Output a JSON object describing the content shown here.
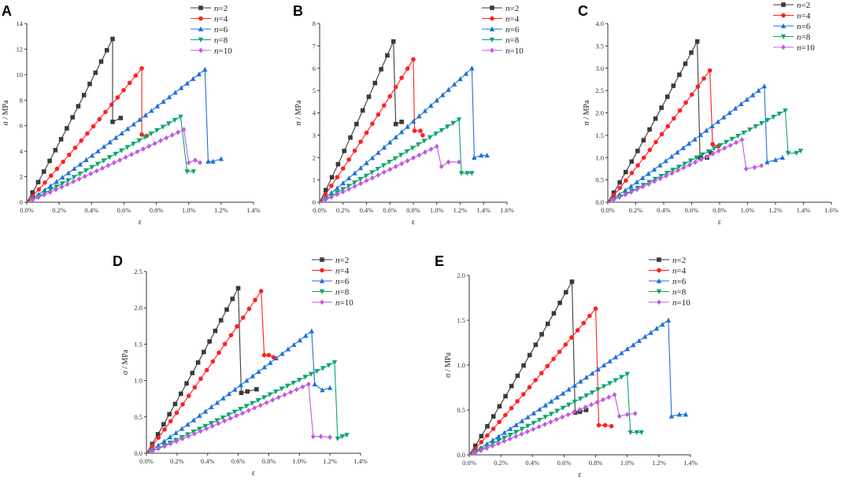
{
  "colors": {
    "n2": "#3a3a3a",
    "n4": "#ff2020",
    "n6": "#1f6fd8",
    "n8": "#0aa56a",
    "n10": "#c05ae0"
  },
  "legend_prefix": "n",
  "legend_suffixes": [
    "=2",
    "=4",
    "=6",
    "=8",
    "=10"
  ],
  "chart_data": [
    {
      "panel": "A",
      "type": "line",
      "xlabel": "ε",
      "ylabel": "σ / MPa",
      "xlim": [
        0,
        1.4
      ],
      "ylim": [
        0,
        14
      ],
      "xticks": [
        "0.0%",
        "0.2%",
        "0.4%",
        "0.6%",
        "0.8%",
        "1.0%",
        "1.2%",
        "1.4%"
      ],
      "yticks": [
        "0",
        "2",
        "4",
        "6",
        "8",
        "10",
        "12",
        "14"
      ],
      "series": [
        {
          "name": "n=2",
          "marker": "square",
          "peak": [
            0.53,
            12.8
          ],
          "post": [
            [
              0.53,
              6.3
            ],
            [
              0.58,
              6.6
            ]
          ]
        },
        {
          "name": "n=4",
          "marker": "circle",
          "peak": [
            0.71,
            10.5
          ],
          "post": [
            [
              0.71,
              5.3
            ],
            [
              0.74,
              5.2
            ]
          ]
        },
        {
          "name": "n=6",
          "marker": "triangle-up",
          "peak": [
            1.1,
            10.4
          ],
          "post": [
            [
              1.12,
              3.2
            ],
            [
              1.15,
              3.2
            ],
            [
              1.2,
              3.4
            ]
          ]
        },
        {
          "name": "n=8",
          "marker": "triangle-down",
          "peak": [
            0.95,
            6.7
          ],
          "post": [
            [
              0.99,
              2.4
            ],
            [
              1.03,
              2.4
            ]
          ]
        },
        {
          "name": "n=10",
          "marker": "diamond",
          "peak": [
            0.97,
            5.7
          ],
          "post": [
            [
              1.0,
              3.1
            ],
            [
              1.04,
              3.3
            ],
            [
              1.07,
              3.1
            ]
          ]
        }
      ]
    },
    {
      "panel": "B",
      "type": "line",
      "xlabel": "ε",
      "ylabel": "σ / MPa",
      "xlim": [
        0,
        1.6
      ],
      "ylim": [
        0,
        8
      ],
      "xticks": [
        "0.0%",
        "0.2%",
        "0.4%",
        "0.6%",
        "0.8%",
        "1.0%",
        "1.2%",
        "1.4%",
        "1.6%"
      ],
      "yticks": [
        "0",
        "1",
        "2",
        "3",
        "4",
        "5",
        "6",
        "7",
        "8"
      ],
      "series": [
        {
          "name": "n=2",
          "marker": "square",
          "peak": [
            0.63,
            7.2
          ],
          "post": [
            [
              0.65,
              3.5
            ],
            [
              0.7,
              3.6
            ]
          ]
        },
        {
          "name": "n=4",
          "marker": "circle",
          "peak": [
            0.8,
            6.4
          ],
          "post": [
            [
              0.81,
              3.2
            ],
            [
              0.86,
              3.2
            ],
            [
              0.88,
              3.0
            ]
          ]
        },
        {
          "name": "n=6",
          "marker": "triangle-up",
          "peak": [
            1.3,
            6.0
          ],
          "post": [
            [
              1.32,
              2.0
            ],
            [
              1.38,
              2.1
            ],
            [
              1.43,
              2.1
            ]
          ]
        },
        {
          "name": "n=8",
          "marker": "triangle-down",
          "peak": [
            1.19,
            3.7
          ],
          "post": [
            [
              1.21,
              1.3
            ],
            [
              1.26,
              1.3
            ],
            [
              1.3,
              1.3
            ]
          ]
        },
        {
          "name": "n=10",
          "marker": "diamond",
          "peak": [
            1.0,
            2.5
          ],
          "post": [
            [
              1.04,
              1.6
            ],
            [
              1.1,
              1.8
            ],
            [
              1.19,
              1.8
            ]
          ]
        }
      ]
    },
    {
      "panel": "C",
      "type": "line",
      "xlabel": "ε",
      "ylabel": "σ / MPa",
      "xlim": [
        0,
        1.6
      ],
      "ylim": [
        0,
        4.0
      ],
      "xticks": [
        "0.0%",
        "0.2%",
        "0.4%",
        "0.6%",
        "0.8%",
        "1.0%",
        "1.2%",
        "1.4%",
        "1.6%"
      ],
      "yticks": [
        "0.0",
        "0.5",
        "1.0",
        "1.5",
        "2.0",
        "2.5",
        "3.0",
        "3.5",
        "4.0"
      ],
      "series": [
        {
          "name": "n=2",
          "marker": "square",
          "peak": [
            0.64,
            3.6
          ],
          "post": [
            [
              0.66,
              1.0
            ],
            [
              0.71,
              1.0
            ],
            [
              0.74,
              1.1
            ]
          ]
        },
        {
          "name": "n=4",
          "marker": "circle",
          "peak": [
            0.73,
            2.95
          ],
          "post": [
            [
              0.75,
              1.3
            ],
            [
              0.79,
              1.25
            ]
          ]
        },
        {
          "name": "n=6",
          "marker": "triangle-up",
          "peak": [
            1.12,
            2.6
          ],
          "post": [
            [
              1.14,
              0.9
            ],
            [
              1.2,
              0.95
            ],
            [
              1.25,
              1.0
            ]
          ]
        },
        {
          "name": "n=8",
          "marker": "triangle-down",
          "peak": [
            1.27,
            2.05
          ],
          "post": [
            [
              1.29,
              1.1
            ],
            [
              1.35,
              1.1
            ],
            [
              1.38,
              1.15
            ]
          ]
        },
        {
          "name": "n=10",
          "marker": "diamond",
          "peak": [
            0.96,
            1.4
          ],
          "post": [
            [
              0.99,
              0.75
            ],
            [
              1.05,
              0.78
            ],
            [
              1.1,
              0.82
            ]
          ]
        }
      ]
    },
    {
      "panel": "D",
      "type": "line",
      "xlabel": "ε",
      "ylabel": "σ / MPa",
      "xlim": [
        0,
        1.4
      ],
      "ylim": [
        0,
        2.5
      ],
      "xticks": [
        "0.0%",
        "0.2%",
        "0.4%",
        "0.6%",
        "0.8%",
        "1.0%",
        "1.2%",
        "1.4%"
      ],
      "yticks": [
        "0.0",
        "0.5",
        "1.0",
        "1.5",
        "2.0",
        "2.5"
      ],
      "series": [
        {
          "name": "n=2",
          "marker": "square",
          "peak": [
            0.6,
            2.27
          ],
          "post": [
            [
              0.62,
              0.83
            ],
            [
              0.66,
              0.85
            ],
            [
              0.72,
              0.88
            ]
          ]
        },
        {
          "name": "n=4",
          "marker": "circle",
          "peak": [
            0.75,
            2.23
          ],
          "post": [
            [
              0.77,
              1.35
            ],
            [
              0.8,
              1.35
            ],
            [
              0.83,
              1.32
            ]
          ]
        },
        {
          "name": "n=6",
          "marker": "triangle-up",
          "peak": [
            1.08,
            1.68
          ],
          "post": [
            [
              1.1,
              0.95
            ],
            [
              1.15,
              0.87
            ],
            [
              1.2,
              0.9
            ]
          ]
        },
        {
          "name": "n=8",
          "marker": "triangle-down",
          "peak": [
            1.23,
            1.25
          ],
          "post": [
            [
              1.25,
              0.2
            ],
            [
              1.28,
              0.23
            ],
            [
              1.31,
              0.25
            ]
          ]
        },
        {
          "name": "n=10",
          "marker": "diamond",
          "peak": [
            1.06,
            0.95
          ],
          "post": [
            [
              1.09,
              0.23
            ],
            [
              1.14,
              0.23
            ],
            [
              1.2,
              0.22
            ]
          ]
        }
      ]
    },
    {
      "panel": "E",
      "type": "line",
      "xlabel": "ε",
      "ylabel": "σ / MPa",
      "xlim": [
        0,
        1.4
      ],
      "ylim": [
        0,
        2.0
      ],
      "xticks": [
        "0.0%",
        "0.2%",
        "0.4%",
        "0.6%",
        "0.8%",
        "1.0%",
        "1.2%",
        "1.4%"
      ],
      "yticks": [
        "0.0",
        "0.5",
        "1.0",
        "1.5",
        "2.0"
      ],
      "series": [
        {
          "name": "n=2",
          "marker": "square",
          "peak": [
            0.65,
            1.93
          ],
          "post": [
            [
              0.67,
              0.47
            ],
            [
              0.7,
              0.48
            ],
            [
              0.74,
              0.5
            ]
          ]
        },
        {
          "name": "n=4",
          "marker": "circle",
          "peak": [
            0.8,
            1.63
          ],
          "post": [
            [
              0.82,
              0.33
            ],
            [
              0.86,
              0.33
            ],
            [
              0.9,
              0.32
            ]
          ]
        },
        {
          "name": "n=6",
          "marker": "triangle-up",
          "peak": [
            1.26,
            1.5
          ],
          "post": [
            [
              1.28,
              0.43
            ],
            [
              1.33,
              0.45
            ],
            [
              1.37,
              0.45
            ]
          ]
        },
        {
          "name": "n=8",
          "marker": "triangle-down",
          "peak": [
            1.0,
            0.9
          ],
          "post": [
            [
              1.02,
              0.25
            ],
            [
              1.06,
              0.25
            ],
            [
              1.09,
              0.25
            ]
          ]
        },
        {
          "name": "n=10",
          "marker": "diamond",
          "peak": [
            0.92,
            0.67
          ],
          "post": [
            [
              0.95,
              0.43
            ],
            [
              1.0,
              0.45
            ],
            [
              1.05,
              0.46
            ]
          ]
        }
      ]
    }
  ]
}
